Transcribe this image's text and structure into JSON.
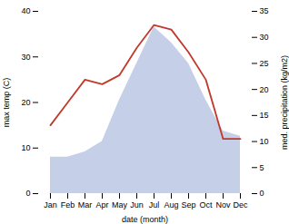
{
  "chart_data": {
    "type": "line",
    "xlabel": "date (month)",
    "ylabel": "max temp (C)",
    "y2label": "med. precipitation (kg/m2)",
    "categories": [
      "Jan",
      "Feb",
      "Mar",
      "Apr",
      "May",
      "Jun",
      "Jul",
      "Aug",
      "Sep",
      "Oct",
      "Nov",
      "Dec"
    ],
    "series": [
      {
        "type": "area",
        "axis": "y2",
        "color": "#c5cfe8",
        "values": [
          7,
          7,
          8,
          10,
          18,
          25,
          32,
          29,
          25,
          18,
          12,
          11
        ]
      },
      {
        "type": "line",
        "color": "#c0392b",
        "values": [
          15,
          20,
          25,
          24,
          26,
          32,
          37,
          36,
          31,
          25,
          12,
          12
        ]
      }
    ],
    "ylim": [
      0,
      40
    ],
    "yticks": [
      0,
      10,
      20,
      30,
      40
    ],
    "y2lim": [
      0,
      35
    ],
    "y2ticks": [
      0,
      5,
      10,
      15,
      20,
      25,
      30,
      35
    ],
    "grid": false
  }
}
